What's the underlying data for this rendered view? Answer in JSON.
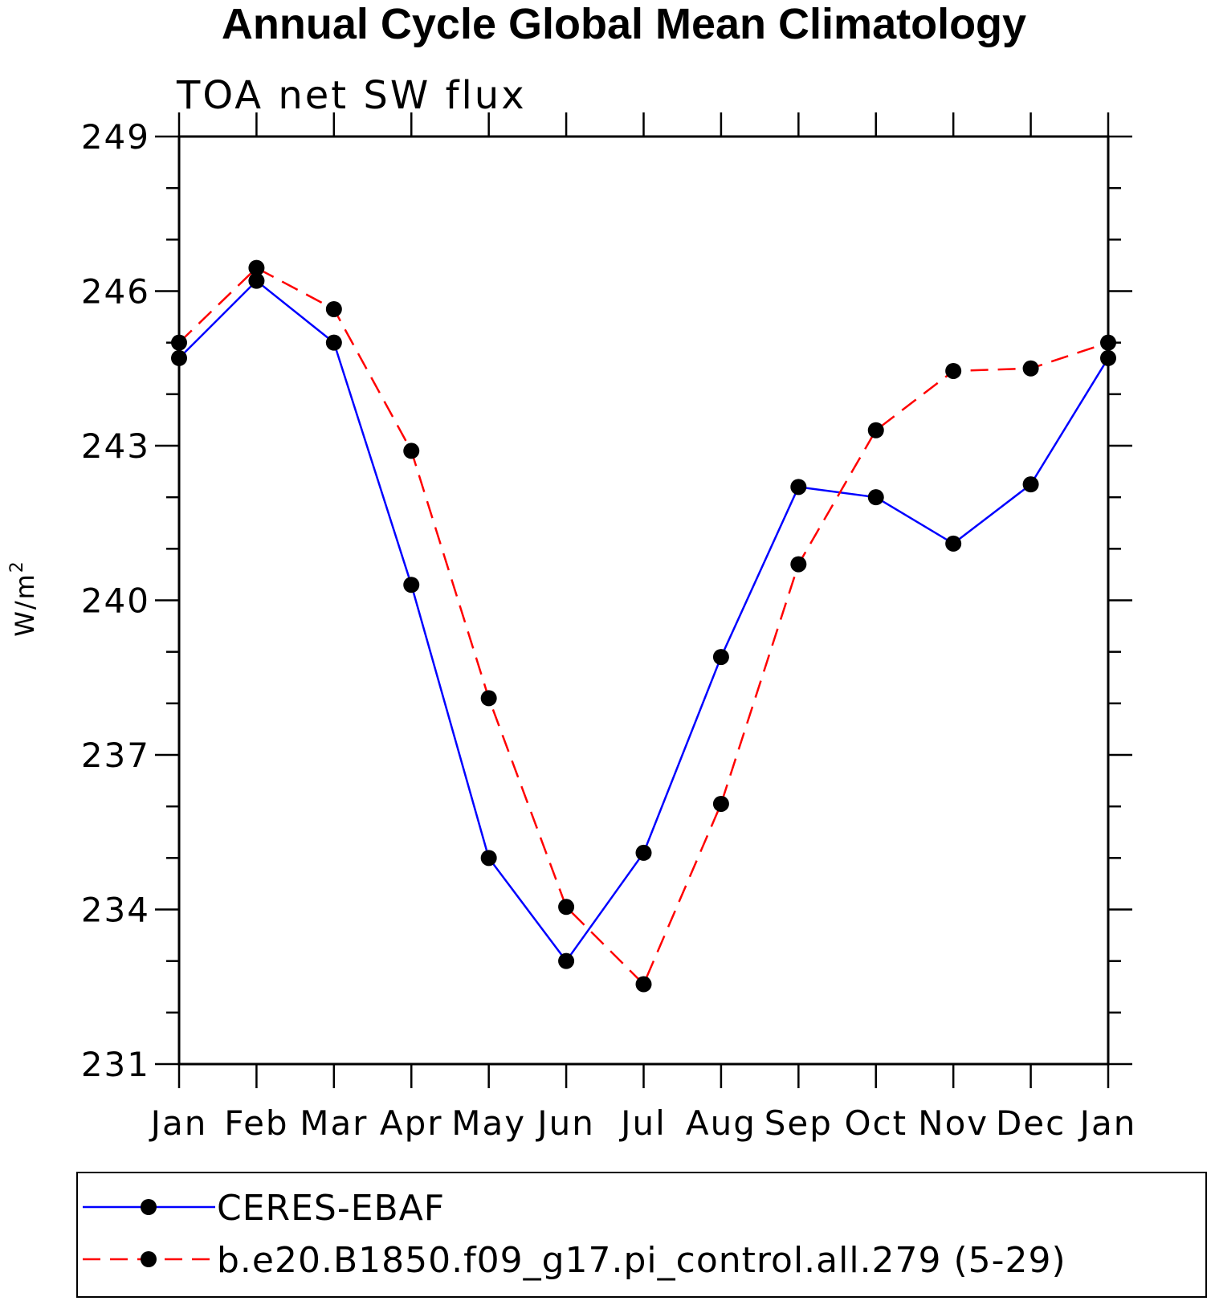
{
  "chart_data": {
    "type": "line",
    "title": "Annual Cycle Global Mean Climatology",
    "subtitle": "TOA net SW flux",
    "ylabel": "W/m",
    "ylabel_superscript": "2",
    "xlabel": "",
    "categories": [
      "Jan",
      "Feb",
      "Mar",
      "Apr",
      "May",
      "Jun",
      "Jul",
      "Aug",
      "Sep",
      "Oct",
      "Nov",
      "Dec",
      "Jan"
    ],
    "ylim": [
      231,
      249
    ],
    "yticks": [
      231,
      234,
      237,
      240,
      243,
      246,
      249
    ],
    "yminor_step": 1,
    "grid": false,
    "legend_position": "bottom",
    "series": [
      {
        "name": "CERES-EBAF",
        "color": "#0000ff",
        "dash": "solid",
        "marker": "filled-circle",
        "values": [
          244.7,
          246.2,
          245.0,
          240.3,
          235.0,
          233.0,
          235.1,
          238.9,
          242.2,
          242.0,
          241.1,
          242.25,
          244.7
        ]
      },
      {
        "name": "b.e20.B1850.f09_g17.pi_control.all.279 (5-29)",
        "color": "#ff0000",
        "dash": "dashed",
        "marker": "filled-circle",
        "values": [
          245.0,
          246.45,
          245.65,
          242.9,
          238.1,
          234.05,
          232.55,
          236.05,
          240.7,
          243.3,
          244.45,
          244.5,
          245.0
        ]
      }
    ]
  }
}
